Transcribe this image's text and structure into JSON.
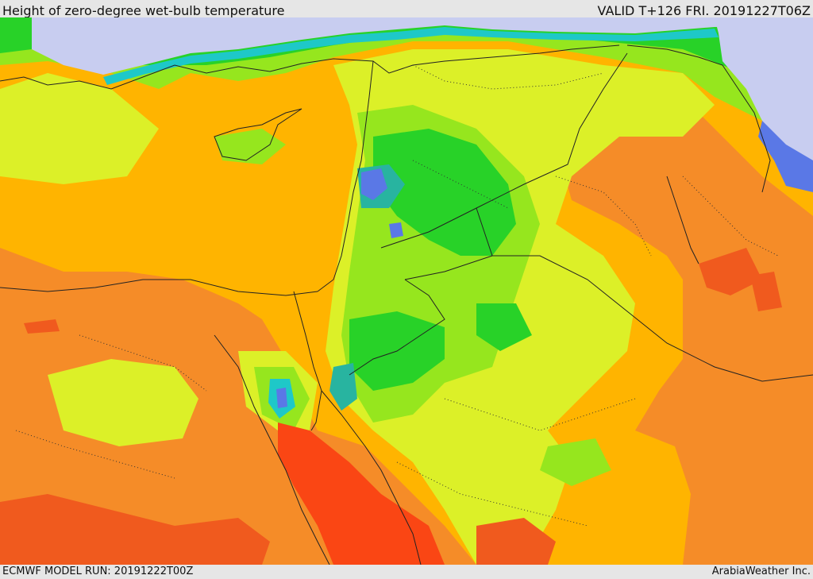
{
  "header": {
    "title": "Height of zero-degree wet-bulb temperature",
    "valid": "VALID T+126 FRI. 20191227T06Z"
  },
  "footer": {
    "model_run": "ECMWF MODEL RUN: 20191222T00Z",
    "credit": "ArabiaWeather Inc."
  },
  "colors": {
    "sea_cold": "#c8cdf0",
    "blue": "#5a78e6",
    "cyan": "#1ec8c8",
    "teal": "#28b4a0",
    "green": "#28d228",
    "lime": "#96e61e",
    "yellow_green": "#dcf028",
    "gold": "#ffb400",
    "orange": "#f58c28",
    "deep_orange": "#f05a1e",
    "red_orange": "#fa4614",
    "border": "#222222"
  }
}
